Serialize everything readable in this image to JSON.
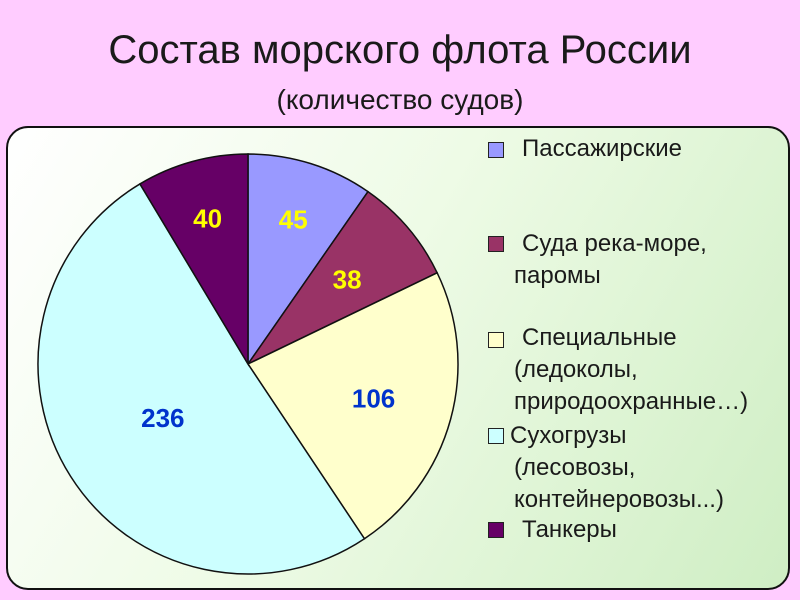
{
  "title": "Состав морского флота России",
  "subtitle": "(количество судов)",
  "chart_data": {
    "type": "pie",
    "categories": [
      "Пассажирские",
      "Суда река-море, паромы",
      "Специальные (ледоколы, природоохранные…)",
      "Сухогрузы (лесовозы, контейнеровозы...)",
      "Танкеры"
    ],
    "values": [
      45,
      38,
      106,
      236,
      40
    ],
    "colors": [
      "#9999ff",
      "#993366",
      "#ffffcc",
      "#ccffff",
      "#660066"
    ],
    "label_colors": [
      "#ffff00",
      "#ffff00",
      "#0033cc",
      "#0033cc",
      "#ffff00"
    ],
    "labels": [
      "45",
      "38",
      "106",
      "236",
      "40"
    ],
    "legend_position": "right"
  },
  "legend": {
    "item1": {
      "line1": "Пассажирские"
    },
    "item2": {
      "line1": "Суда река-море,",
      "line2": "паромы"
    },
    "item3": {
      "line1": "Специальные",
      "line2": "(ледоколы,",
      "line3": "природоохранные…)"
    },
    "item4": {
      "line1": "Сухогрузы",
      "line2": "(лесовозы,",
      "line3": "контейнеровозы...)"
    },
    "item5": {
      "line1": "Танкеры"
    }
  }
}
